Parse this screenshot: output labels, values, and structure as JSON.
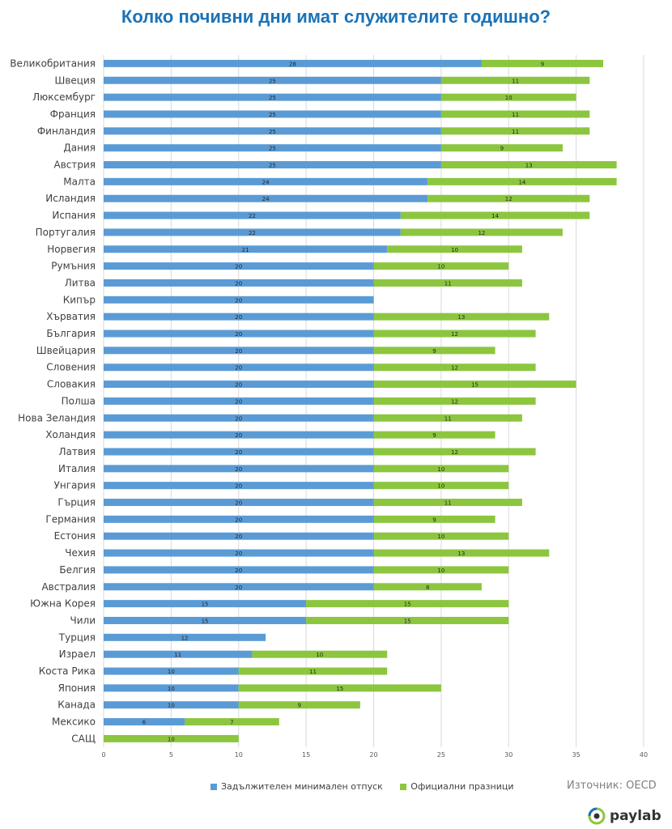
{
  "chart_data": {
    "type": "bar",
    "stacked": true,
    "orientation": "horizontal",
    "title": "Колко почивни дни имат служителите годишно?",
    "categories": [
      "Великобритания",
      "Швеция",
      "Люксембург",
      "Франция",
      "Финландия",
      "Дания",
      "Австрия",
      "Малта",
      "Исландия",
      "Испания",
      "Португалия",
      "Норвегия",
      "Румъния",
      "Литва",
      "Кипър",
      "Хърватия",
      "България",
      "Швейцария",
      "Словения",
      "Словакия",
      "Полша",
      "Нова Зеландия",
      "Холандия",
      "Латвия",
      "Италия",
      "Унгария",
      "Гърция",
      "Германия",
      "Естония",
      "Чехия",
      "Белгия",
      "Австралия",
      "Южна Корея",
      "Чили",
      "Турция",
      "Израел",
      "Коста Рика",
      "Япония",
      "Канада",
      "Мексико",
      "САЩ"
    ],
    "series": [
      {
        "name": "Задължителен минимален отпуск",
        "color": "#5b9bd5",
        "values": [
          28,
          25,
          25,
          25,
          25,
          25,
          25,
          24,
          24,
          22,
          22,
          21,
          20,
          20,
          20,
          20,
          20,
          20,
          20,
          20,
          20,
          20,
          20,
          20,
          20,
          20,
          20,
          20,
          20,
          20,
          20,
          20,
          15,
          15,
          12,
          11,
          10,
          10,
          10,
          6,
          0
        ]
      },
      {
        "name": "Официални празници",
        "color": "#8cc63f",
        "values": [
          9,
          11,
          10,
          11,
          11,
          9,
          13,
          14,
          12,
          14,
          12,
          10,
          10,
          11,
          0,
          13,
          12,
          9,
          12,
          15,
          12,
          11,
          9,
          12,
          10,
          10,
          11,
          9,
          10,
          13,
          10,
          8,
          15,
          15,
          0,
          10,
          11,
          15,
          9,
          7,
          10
        ]
      }
    ],
    "xlim": [
      0,
      40
    ],
    "xticks": [
      0,
      5,
      10,
      15,
      20,
      25,
      30,
      35,
      40
    ],
    "grid": true,
    "legend_position": "bottom"
  },
  "source": "Източник: OECD",
  "logo_text": "paylab"
}
